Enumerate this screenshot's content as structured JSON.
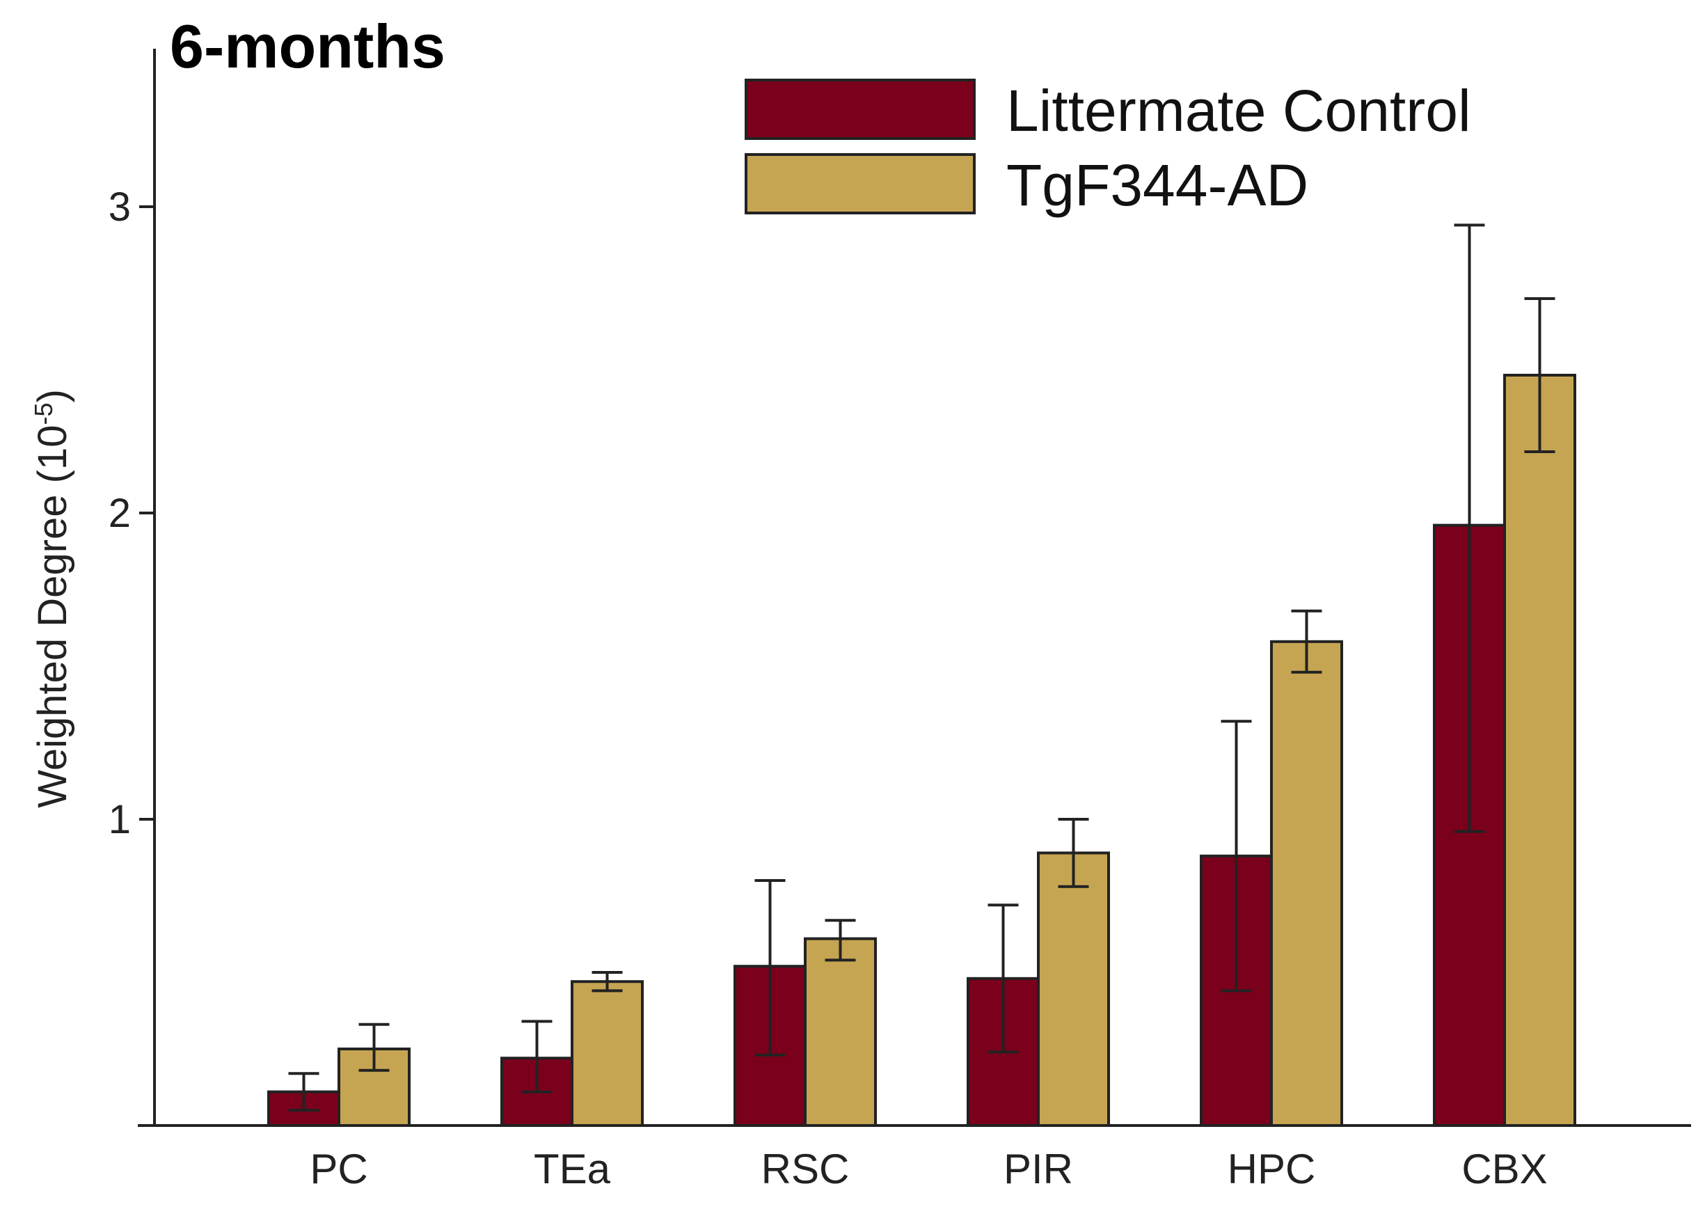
{
  "chart_data": {
    "type": "bar",
    "title": "6-months",
    "ylabel": "Weighted Degree (10",
    "ylabel_superscript": "-5",
    "ylabel_suffix": ")",
    "xlabel": "",
    "categories": [
      "PC",
      "TEa",
      "RSC",
      "PIR",
      "HPC",
      "CBX"
    ],
    "ylim": [
      0,
      3.5
    ],
    "yticks": [
      1,
      2,
      3
    ],
    "grid": false,
    "legend_position": "top-right",
    "series": [
      {
        "name": "Littermate Control",
        "color": "#7b001c",
        "values": [
          0.11,
          0.22,
          0.52,
          0.48,
          0.88,
          1.96
        ],
        "err_low": [
          0.05,
          0.11,
          0.23,
          0.24,
          0.44,
          0.96
        ],
        "err_high": [
          0.17,
          0.34,
          0.8,
          0.72,
          1.32,
          2.94
        ]
      },
      {
        "name": "TgF344-AD",
        "color": "#c6a552",
        "values": [
          0.25,
          0.47,
          0.61,
          0.89,
          1.58,
          2.45
        ],
        "err_low": [
          0.18,
          0.44,
          0.54,
          0.78,
          1.48,
          2.2
        ],
        "err_high": [
          0.33,
          0.5,
          0.67,
          1.0,
          1.68,
          2.7
        ]
      }
    ]
  }
}
